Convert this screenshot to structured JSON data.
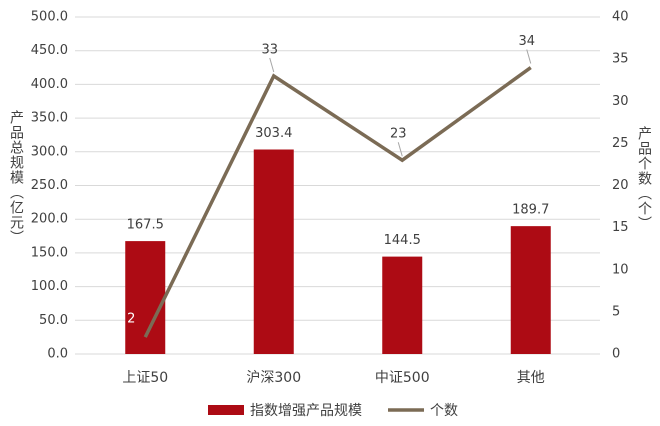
{
  "chart_data": {
    "type": "combo",
    "y_label": "产品总规模（亿元）",
    "y2_label": "产品个数（个）",
    "categories": [
      "上证50",
      "沪深300",
      "中证500",
      "其他"
    ],
    "series": [
      {
        "name": "指数增强产品规模",
        "type": "bar",
        "color": "#ad0b14",
        "values": [
          167.5,
          303.4,
          144.5,
          189.7
        ]
      },
      {
        "name": "个数",
        "type": "line",
        "color": "#7b6b55",
        "axis": "y2",
        "values": [
          2,
          33,
          23,
          34
        ]
      }
    ],
    "ylim": [
      0,
      500
    ],
    "yticks": [
      {
        "value": 0,
        "label": "0.0"
      },
      {
        "value": 50,
        "label": "50.0"
      },
      {
        "value": 100,
        "label": "100.0"
      },
      {
        "value": 150,
        "label": "150.0"
      },
      {
        "value": 200,
        "label": "200.0"
      },
      {
        "value": 250,
        "label": "250.0"
      },
      {
        "value": 300,
        "label": "300.0"
      },
      {
        "value": 350,
        "label": "350.0"
      },
      {
        "value": 400,
        "label": "400.0"
      },
      {
        "value": 450,
        "label": "450.0"
      },
      {
        "value": 500,
        "label": "500.0"
      }
    ],
    "y2lim": [
      0,
      40
    ],
    "y2ticks": [
      0,
      5,
      10,
      15,
      20,
      25,
      30,
      35,
      40
    ],
    "grid": true
  }
}
